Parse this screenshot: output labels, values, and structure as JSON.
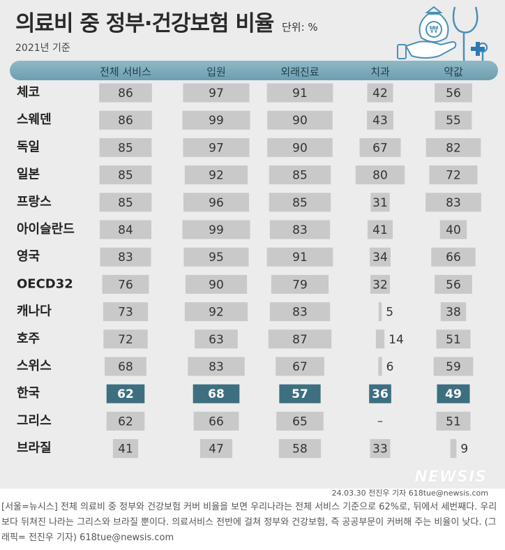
{
  "header": {
    "title": "의료비 중 정부·건강보험 비율",
    "unit": "단위: %",
    "subtitle": "2021년 기준"
  },
  "chart_data": {
    "type": "bar",
    "columns": [
      "전체 서비스",
      "입원",
      "외래진료",
      "치과",
      "약값"
    ],
    "rows": [
      {
        "country": "체코",
        "values": [
          86,
          97,
          91,
          42,
          56
        ]
      },
      {
        "country": "스웨덴",
        "values": [
          86,
          99,
          90,
          43,
          55
        ]
      },
      {
        "country": "독일",
        "values": [
          85,
          97,
          90,
          67,
          82
        ]
      },
      {
        "country": "일본",
        "values": [
          85,
          92,
          85,
          80,
          72
        ]
      },
      {
        "country": "프랑스",
        "values": [
          85,
          96,
          85,
          31,
          83
        ]
      },
      {
        "country": "아이슬란드",
        "values": [
          84,
          99,
          83,
          41,
          40
        ]
      },
      {
        "country": "영국",
        "values": [
          83,
          95,
          91,
          34,
          66
        ]
      },
      {
        "country": "OECD32",
        "values": [
          76,
          90,
          79,
          32,
          56
        ]
      },
      {
        "country": "캐나다",
        "values": [
          73,
          92,
          83,
          5,
          38
        ]
      },
      {
        "country": "호주",
        "values": [
          72,
          63,
          87,
          14,
          51
        ]
      },
      {
        "country": "스위스",
        "values": [
          68,
          83,
          67,
          6,
          59
        ]
      },
      {
        "country": "한국",
        "values": [
          62,
          68,
          57,
          36,
          49
        ],
        "highlight": true
      },
      {
        "country": "그리스",
        "values": [
          62,
          66,
          65,
          null,
          51
        ]
      },
      {
        "country": "브라질",
        "values": [
          41,
          47,
          58,
          33,
          9
        ]
      }
    ],
    "missing_label": "–",
    "colors": {
      "bar": "#c9c9c9",
      "highlight_bar": "#3d6f80",
      "header": "#7fabbb",
      "background": "#ececec"
    }
  },
  "footer": {
    "brand": "NEWSIS",
    "date_credit": "24.03.30 전진우 기자 618tue@newsis.com",
    "caption": "[서울=뉴시스] 전체 의료비 중 정부와 건강보험 커버 비율을 보면 우리나라는 전체 서비스 기준으로 62%로, 뒤에서 세번째다. 우리보다 뒤쳐진 나라는 그리스와 브라질 뿐이다. 의료서비스 전반에 걸쳐 정부와 건강보험, 즉 공공부문이 커버해 주는 비율이 낮다. (그래픽= 전진우 기자) 618tue@newsis.com"
  },
  "icons": [
    "money-bag-icon",
    "hand-icon",
    "stethoscope-icon",
    "medical-cross-icon"
  ]
}
